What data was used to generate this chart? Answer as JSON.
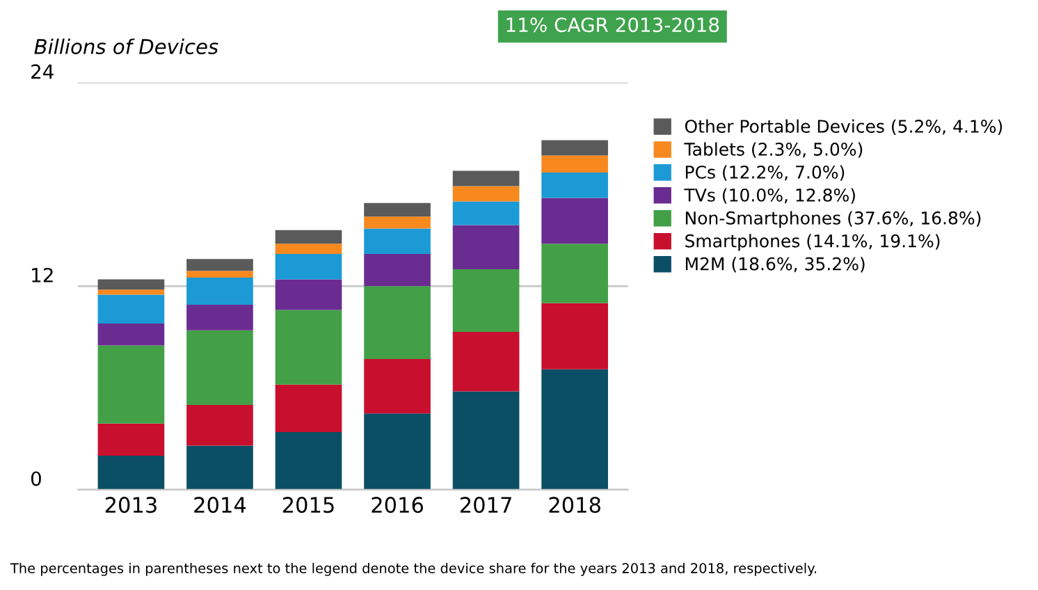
{
  "chart_data": {
    "type": "bar",
    "stacked": true,
    "ylabel": "Billions of Devices",
    "categories": [
      "2013",
      "2014",
      "2015",
      "2016",
      "2017",
      "2018"
    ],
    "series": [
      {
        "name": "M2M (18.6%, 35.2%)",
        "color": "#0b4f66",
        "values": [
          2.0,
          2.6,
          3.4,
          4.5,
          5.8,
          7.1
        ]
      },
      {
        "name": "Smartphones (14.1%, 19.1%)",
        "color": "#c8102e",
        "values": [
          1.9,
          2.4,
          2.8,
          3.2,
          3.5,
          3.9
        ]
      },
      {
        "name": "Non-Smartphones (37.6%, 16.8%)",
        "color": "#43a047",
        "values": [
          4.6,
          4.4,
          4.4,
          4.3,
          3.7,
          3.5
        ]
      },
      {
        "name": "TVs (10.0%, 12.8%)",
        "color": "#6a2c91",
        "values": [
          1.3,
          1.5,
          1.8,
          1.9,
          2.6,
          2.7
        ]
      },
      {
        "name": "PCs (12.2%, 7.0%)",
        "color": "#1b9ad6",
        "values": [
          1.7,
          1.6,
          1.5,
          1.5,
          1.4,
          1.5
        ]
      },
      {
        "name": "Tablets (2.3%, 5.0%)",
        "color": "#f7891f",
        "values": [
          0.3,
          0.4,
          0.6,
          0.7,
          0.9,
          1.0
        ]
      },
      {
        "name": "Other Portable Devices (5.2%, 4.1%)",
        "color": "#5a5a5a",
        "values": [
          0.6,
          0.7,
          0.8,
          0.8,
          0.9,
          0.9
        ]
      }
    ],
    "ylim": [
      0,
      24
    ],
    "yticks": [
      0,
      12,
      24
    ],
    "grid": "y",
    "legend": "right",
    "annotations": [
      "11% CAGR 2013-2018",
      "The percentages in parentheses next to the legend denote the device share for the years 2013 and 2018, respectively."
    ]
  }
}
